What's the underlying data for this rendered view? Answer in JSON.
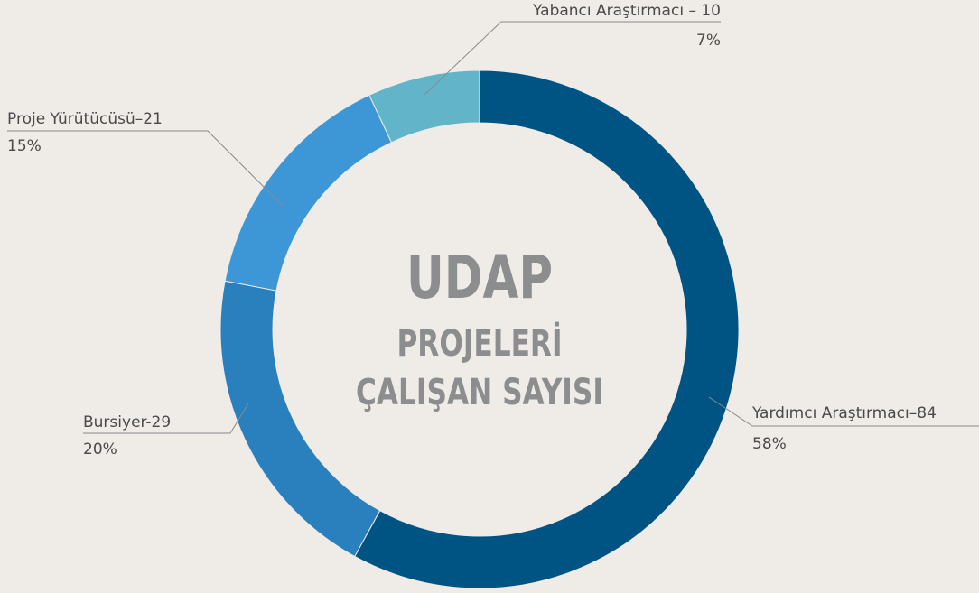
{
  "chart_data": {
    "type": "pie",
    "donut": true,
    "title": "UDAP",
    "subtitle": [
      "PROJELERİ",
      "ÇALIŞAN SAYISI"
    ],
    "categories": [
      "Yardımcı Araştırmacı–84",
      "Bursiyer-29",
      "Proje Yürütücüsü–21",
      "Yabancı Araştırmacı – 10"
    ],
    "values": [
      58,
      20,
      15,
      7
    ],
    "value_labels": [
      "58%",
      "20%",
      "15%",
      "7%"
    ],
    "colors": [
      "#005483",
      "#2a80bd",
      "#3d97d6",
      "#62b5c8"
    ]
  }
}
